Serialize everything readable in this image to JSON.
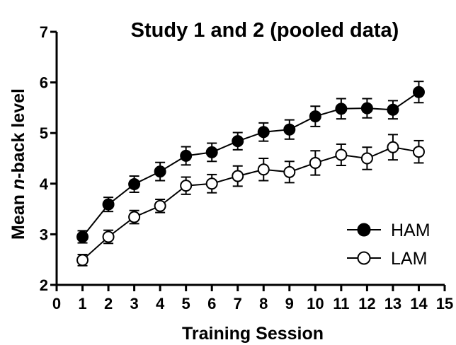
{
  "chart_data": {
    "type": "line",
    "title": "Study 1 and 2 (pooled data)",
    "xlabel": "Training Session",
    "ylabel_parts": {
      "before": "Mean ",
      "italic": "n",
      "after": "-back level"
    },
    "xlim": [
      0,
      15
    ],
    "ylim": [
      2,
      7
    ],
    "x_ticks": [
      0,
      1,
      2,
      3,
      4,
      5,
      6,
      7,
      8,
      9,
      10,
      11,
      12,
      13,
      14,
      15
    ],
    "y_ticks": [
      2,
      3,
      4,
      5,
      6,
      7
    ],
    "grid": false,
    "legend_position": "bottom-right",
    "x": [
      1,
      2,
      3,
      4,
      5,
      6,
      7,
      8,
      9,
      10,
      11,
      12,
      13,
      14
    ],
    "series": [
      {
        "name": "HAM",
        "marker": "filled-circle",
        "color": "#000000",
        "values": [
          2.95,
          3.59,
          3.99,
          4.24,
          4.55,
          4.62,
          4.84,
          5.02,
          5.07,
          5.33,
          5.48,
          5.49,
          5.46,
          5.81
        ],
        "errors": [
          0.12,
          0.14,
          0.16,
          0.18,
          0.18,
          0.18,
          0.17,
          0.18,
          0.19,
          0.2,
          0.2,
          0.19,
          0.18,
          0.21
        ]
      },
      {
        "name": "LAM",
        "marker": "open-circle",
        "color": "#000000",
        "values": [
          2.49,
          2.95,
          3.34,
          3.56,
          3.96,
          4.0,
          4.15,
          4.28,
          4.23,
          4.41,
          4.57,
          4.5,
          4.72,
          4.63
        ],
        "errors": [
          0.11,
          0.13,
          0.13,
          0.13,
          0.17,
          0.18,
          0.2,
          0.22,
          0.21,
          0.24,
          0.21,
          0.22,
          0.25,
          0.22
        ]
      }
    ]
  }
}
